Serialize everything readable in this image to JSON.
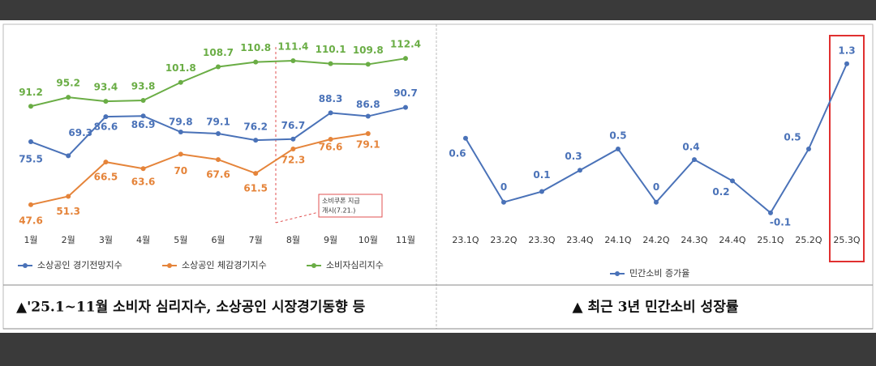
{
  "chart_data": [
    {
      "type": "line",
      "categories": [
        "1월",
        "2월",
        "3월",
        "4월",
        "5월",
        "6월",
        "7월",
        "8월",
        "9월",
        "10월",
        "11월"
      ],
      "series": [
        {
          "name": "소비자심리지수",
          "color": "#6aad45",
          "values": [
            91.2,
            95.2,
            93.4,
            93.8,
            101.8,
            108.7,
            110.8,
            111.4,
            110.1,
            109.8,
            112.4
          ]
        },
        {
          "name": "소상공인 경기전망지수",
          "color": "#4a72b8",
          "values": [
            75.5,
            69.3,
            86.6,
            86.9,
            79.8,
            79.1,
            76.2,
            76.7,
            88.3,
            86.8,
            90.7
          ]
        },
        {
          "name": "소상공인 체감경기지수",
          "color": "#e5843a",
          "values": [
            47.6,
            51.3,
            66.5,
            63.6,
            70,
            67.6,
            61.5,
            72.3,
            76.6,
            79.1,
            null
          ]
        }
      ],
      "legend_order": [
        1,
        2,
        0
      ],
      "ylim": [
        40,
        120
      ],
      "annotation": [
        "소비쿠폰 지급",
        "개시(7.21.)"
      ],
      "caption": "▲'25.1~11월 소비자 심리지수, 소상공인 시장경기동향 등"
    },
    {
      "type": "line",
      "categories": [
        "23.1Q",
        "23.2Q",
        "23.3Q",
        "23.4Q",
        "24.1Q",
        "24.2Q",
        "24.3Q",
        "24.4Q",
        "25.1Q",
        "25.2Q",
        "25.3Q"
      ],
      "series": [
        {
          "name": "민간소비 증가율",
          "color": "#4a72b8",
          "values": [
            0.6,
            0,
            0.1,
            0.3,
            0.5,
            0,
            0.4,
            0.2,
            -0.1,
            0.5,
            1.3
          ]
        }
      ],
      "legend_order": [
        0
      ],
      "ylim": [
        -0.2,
        1.4
      ],
      "highlight": "red",
      "caption": "▲ 최근 3년 민간소비 성장률"
    }
  ]
}
